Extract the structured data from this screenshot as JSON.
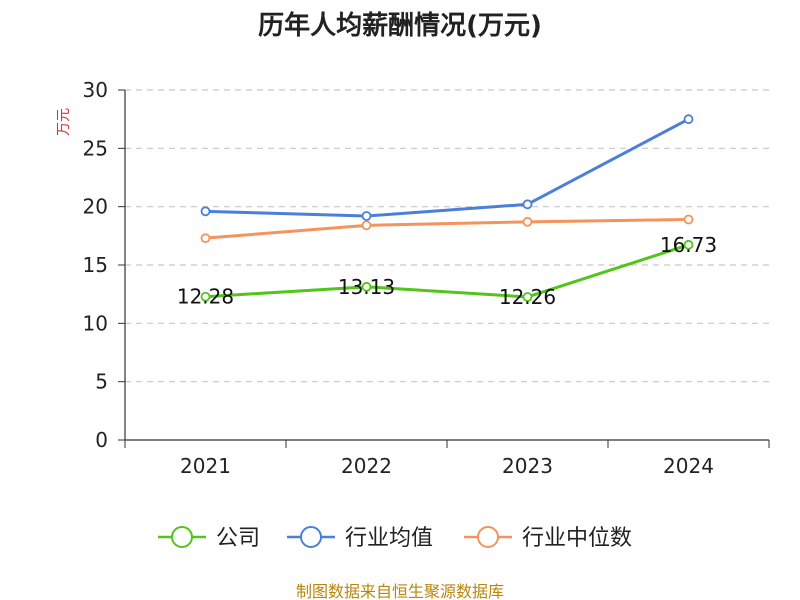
{
  "chart_data": {
    "type": "line",
    "title": "历年人均薪酬情况(万元)",
    "ylabel": "万元",
    "xlabel": "",
    "categories": [
      "2021",
      "2022",
      "2023",
      "2024"
    ],
    "ylim": [
      0,
      30
    ],
    "yticks": [
      0,
      5,
      10,
      15,
      20,
      25,
      30
    ],
    "grid": "horizontal-dashed",
    "legend_position": "bottom",
    "series": [
      {
        "name": "公司",
        "color": "#52c41a",
        "values": [
          12.28,
          13.13,
          12.26,
          16.73
        ],
        "labels": [
          "12.28",
          "13.13",
          "12.26",
          "16.73"
        ]
      },
      {
        "name": "行业均值",
        "color": "#4a7fdc",
        "values": [
          19.6,
          19.2,
          20.2,
          27.5
        ]
      },
      {
        "name": "行业中位数",
        "color": "#f4935b",
        "values": [
          17.3,
          18.4,
          18.7,
          18.9
        ]
      }
    ]
  },
  "source": "制图数据来自恒生聚源数据库"
}
